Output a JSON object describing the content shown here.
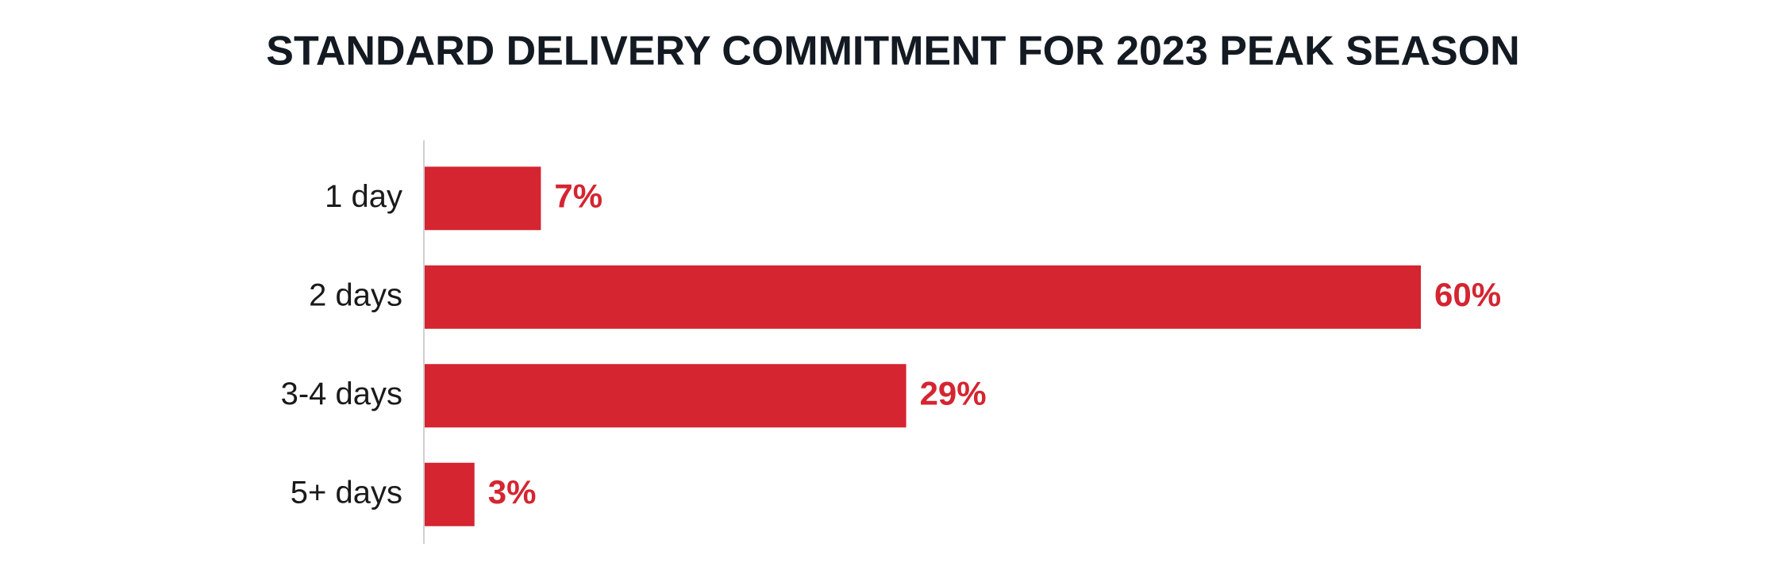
{
  "chart_data": {
    "type": "barh",
    "title": "STANDARD DELIVERY COMMITMENT FOR 2023 PEAK SEASON",
    "categories": [
      "1 day",
      "2 days",
      "3-4 days",
      "5+ days"
    ],
    "values": [
      7,
      60,
      29,
      3
    ],
    "value_labels": [
      "7%",
      "60%",
      "29%",
      "3%"
    ],
    "color": "#d42531"
  }
}
